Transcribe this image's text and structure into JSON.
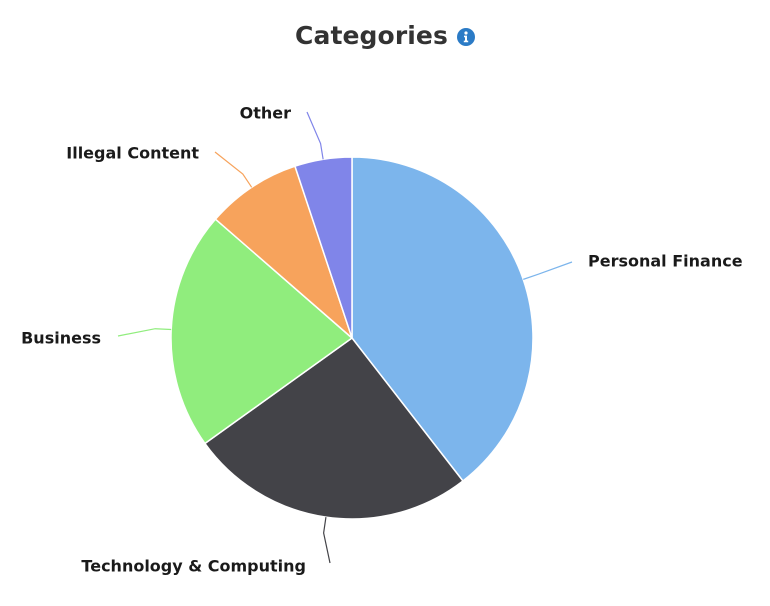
{
  "header": {
    "title": "Categories",
    "info_icon": "info-circle-icon"
  },
  "colors": {
    "title": "#333333",
    "info": "#2b7bc6",
    "slice_stroke": "#ffffff"
  },
  "chart_data": {
    "type": "pie",
    "title": "Categories",
    "categories": [
      "Personal Finance",
      "Technology & Computing",
      "Business",
      "Illegal Content",
      "Other"
    ],
    "values": [
      39.5,
      25.6,
      21.3,
      8.5,
      5.1
    ],
    "colors": [
      "#7cb5ec",
      "#434348",
      "#90ed7d",
      "#f7a35c",
      "#8085e9"
    ],
    "data_labels": true,
    "legend": "none"
  }
}
